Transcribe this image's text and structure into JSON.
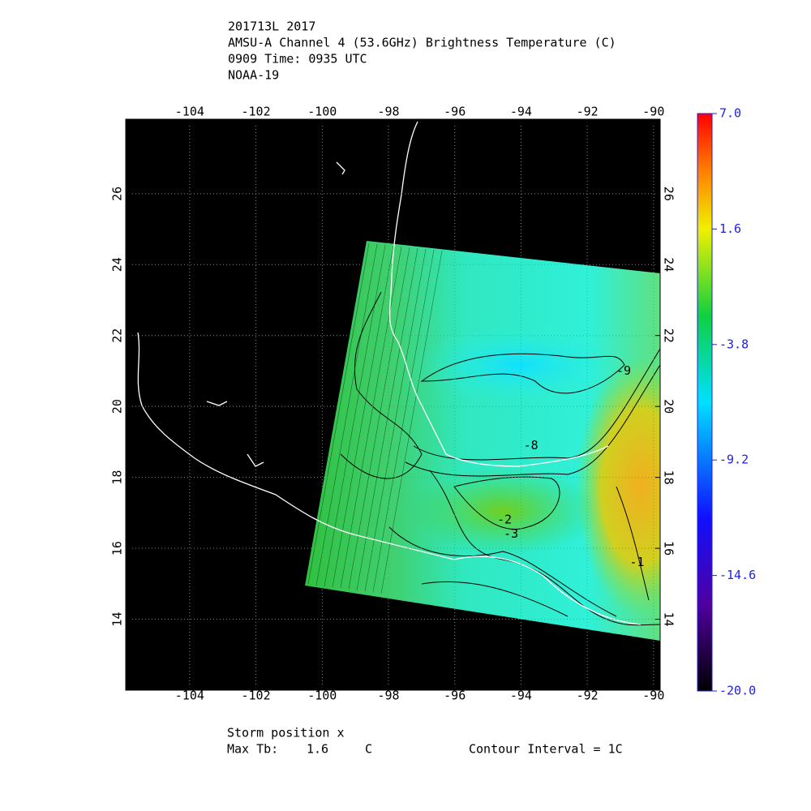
{
  "chart_data": {
    "type": "map",
    "title": [
      "201713L 2017",
      "AMSU-A Channel 4 (53.6GHz) Brightness Temperature (C)",
      "0909 Time: 0935 UTC",
      "NOAA-19"
    ],
    "xlim": [
      -105.93,
      -89.8
    ],
    "ylim": [
      12.0,
      28.1
    ],
    "xticks": [
      -104,
      -102,
      -100,
      -98,
      -96,
      -94,
      -92,
      -90
    ],
    "yticks": [
      14,
      16,
      18,
      20,
      22,
      24,
      26
    ],
    "colorbar": {
      "lim": [
        -20,
        7
      ],
      "ticks": [
        {
          "value": -20,
          "label": "-20.0"
        },
        -14.6,
        -9.2,
        -3.8,
        1.6,
        {
          "value": 7,
          "label": "7.0"
        }
      ]
    },
    "contour_labels": [
      {
        "text": "-9",
        "lon": -90.9,
        "lat": 21.0
      },
      {
        "text": "-8",
        "lon": -93.7,
        "lat": 18.9
      },
      {
        "text": "-2",
        "lon": -94.5,
        "lat": 16.8
      },
      {
        "text": "-3",
        "lon": -94.3,
        "lat": 16.4
      },
      {
        "text": "-1",
        "lon": -90.5,
        "lat": 15.6
      }
    ],
    "footer": {
      "storm_position": "Storm position x",
      "max_tb_label": "Max Tb:",
      "max_tb_value": "1.6",
      "max_tb_unit": "C",
      "contour_interval": "Contour Interval = 1C"
    }
  }
}
